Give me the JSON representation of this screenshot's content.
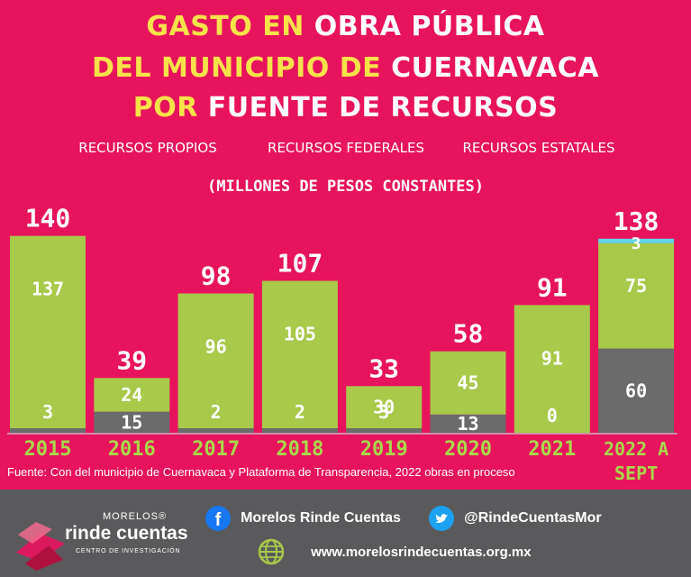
{
  "title": {
    "line1_a": "GASTO EN",
    "line1_b": "OBRA PÚBLICA",
    "line2_a": "DEL MUNICIPIO DE",
    "line2_b": "CUERNAVACA",
    "line3_a": "POR",
    "line3_b": "FUENTE DE RECURSOS"
  },
  "legend": [
    {
      "label": "RECURSOS PROPIOS",
      "color": "#6b6b6b"
    },
    {
      "label": "RECURSOS FEDERALES",
      "color": "#a8c94a"
    },
    {
      "label": "RECURSOS ESTATALES",
      "color": "#5fd8e6"
    }
  ],
  "subtitle": "(MILLONES DE PESOS CONSTANTES)",
  "chart_data": {
    "type": "bar",
    "stacked": true,
    "categories": [
      "2015",
      "2016",
      "2017",
      "2018",
      "2019",
      "2020",
      "2021",
      "2022 A SEPT"
    ],
    "series": [
      {
        "name": "RECURSOS PROPIOS",
        "color": "#6b6b6b",
        "values": [
          3,
          15,
          2,
          2,
          3,
          13,
          0,
          60
        ]
      },
      {
        "name": "RECURSOS FEDERALES",
        "color": "#a8c94a",
        "values": [
          137,
          24,
          96,
          105,
          30,
          45,
          91,
          75
        ]
      },
      {
        "name": "RECURSOS ESTATALES",
        "color": "#5fd8e6",
        "values": [
          0,
          0,
          0,
          0,
          0,
          0,
          0,
          3
        ]
      }
    ],
    "totals": [
      140,
      39,
      98,
      107,
      33,
      58,
      91,
      138
    ],
    "ylim": [
      0,
      140
    ],
    "grid": false,
    "legend_position": "top"
  },
  "source": "Fuente: Con del municipio de Cuernavaca y Plataforma de Transparencia, 2022 obras en proceso",
  "footer": {
    "logo_top": "MORELOS®",
    "logo_main": "rinde cuentas",
    "logo_sub": "CENTRO DE INVESTIGACIÓN",
    "facebook": "Morelos Rinde Cuentas",
    "twitter": "@RindeCuentasMor",
    "website": "www.morelosrindecuentas.org.mx"
  }
}
